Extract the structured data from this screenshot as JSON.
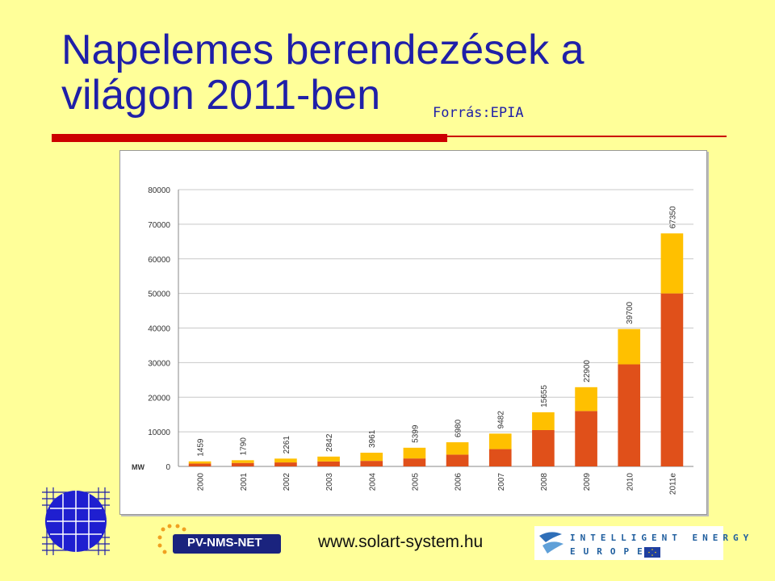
{
  "slide": {
    "title_line1": "Napelemes berendezések a",
    "title_line2": "világon 2011-ben",
    "source": "Forrás:EPIA",
    "footer_url": "www.solart-system.hu",
    "pv_logo_text": "PV-NMS-NET",
    "iee_line1": "INTELLIGENT ENERGY",
    "iee_line2": "EUROPE",
    "colors": {
      "background": "#FFFF99",
      "title": "#1F1FA8",
      "rule": "#CC0000",
      "bar_base": "#E0501A",
      "bar_top": "#FFC000"
    }
  },
  "chart_data": {
    "type": "bar",
    "stacked": true,
    "unit_label": "MW",
    "categories": [
      "2000",
      "2001",
      "2002",
      "2003",
      "2004",
      "2005",
      "2006",
      "2007",
      "2008",
      "2009",
      "2010",
      "2011e"
    ],
    "totals": [
      1459,
      1790,
      2261,
      2842,
      3961,
      5399,
      6980,
      9482,
      15655,
      22900,
      39700,
      67350
    ],
    "series": [
      {
        "values": [
          830,
          1000,
          1150,
          1430,
          1600,
          2300,
          3400,
          5000,
          10500,
          16000,
          29500,
          50000
        ],
        "color": "#E0501A"
      },
      {
        "values": [
          629,
          790,
          1111,
          1412,
          2361,
          3099,
          3580,
          4482,
          5155,
          6900,
          10200,
          17350
        ],
        "color": "#FFC000"
      }
    ],
    "yticks": [
      "0",
      "10000",
      "20000",
      "30000",
      "40000",
      "50000",
      "60000",
      "70000",
      "80000"
    ],
    "ylim": [
      0,
      80000
    ],
    "grid": true
  }
}
